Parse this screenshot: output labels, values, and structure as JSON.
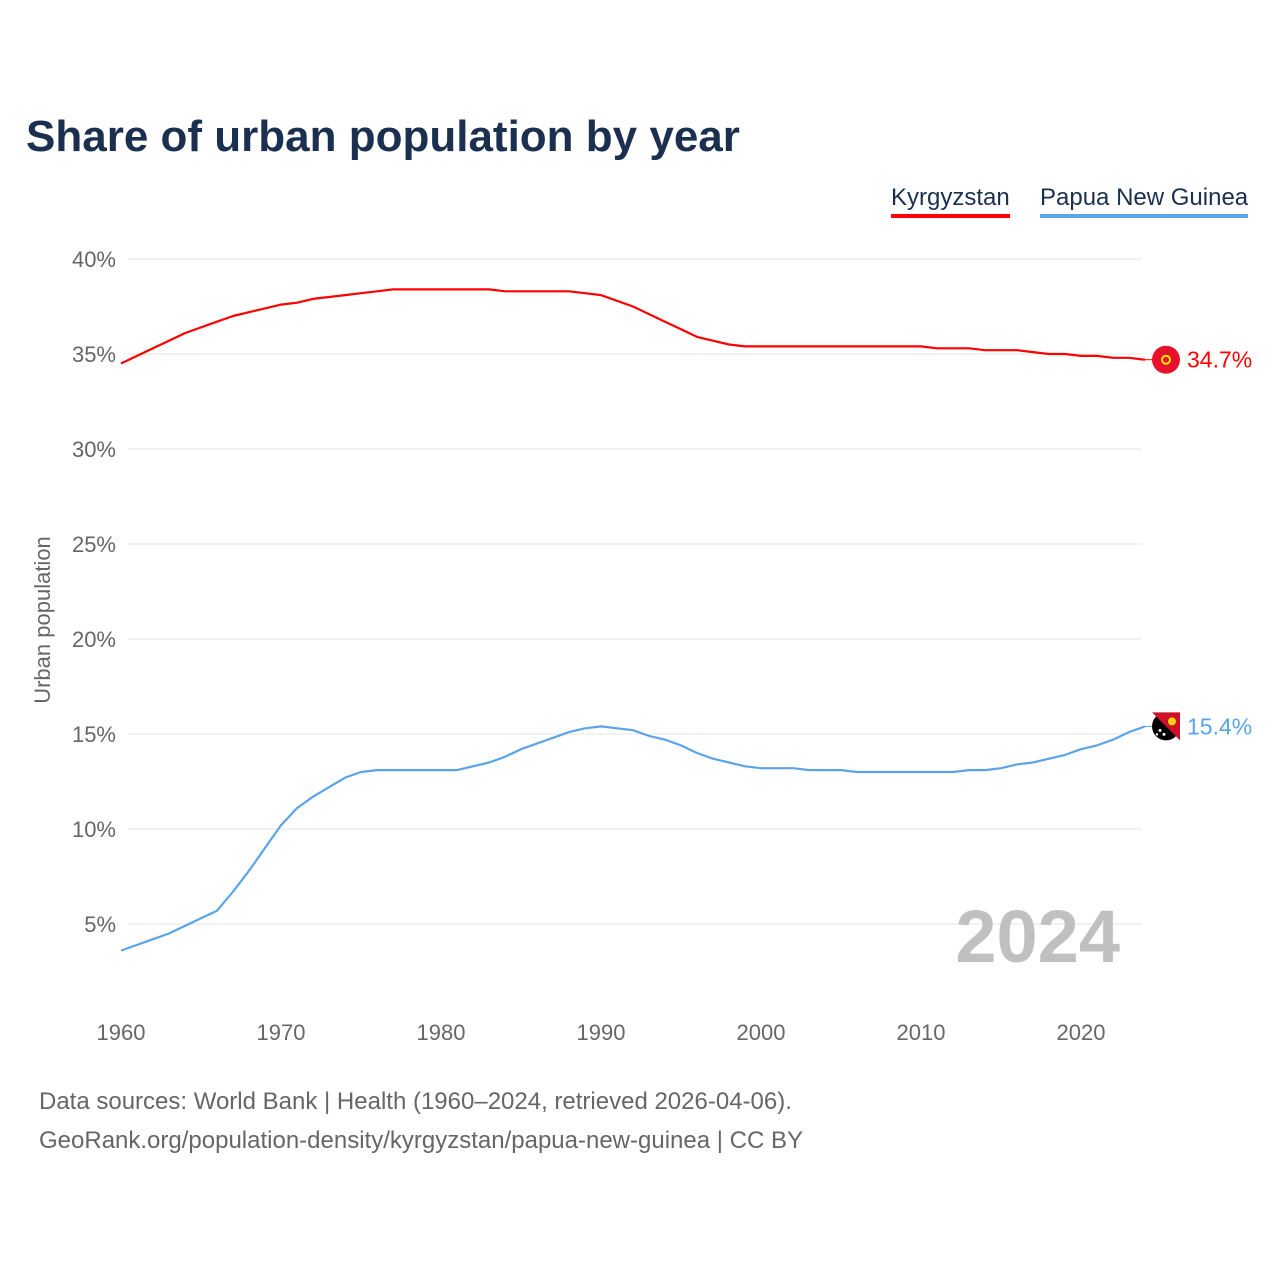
{
  "title": "Share of urban population by year",
  "legend": [
    {
      "name": "Kyrgyzstan",
      "color": "#ff0000"
    },
    {
      "name": "Papua New Guinea",
      "color": "#5ba4e8"
    }
  ],
  "watermark_year": "2024",
  "footer": {
    "line1": "Data sources: World Bank | Health (1960–2024, retrieved 2026-04-06).",
    "line2": "GeoRank.org/population-density/kyrgyzstan/papua-new-guinea | CC BY"
  },
  "chart_data": {
    "type": "line",
    "title": "Share of urban population by year",
    "xlabel": "",
    "ylabel": "Urban population",
    "xlim": [
      1960,
      2024
    ],
    "ylim": [
      0,
      40
    ],
    "x_ticks": [
      1960,
      1970,
      1980,
      1990,
      2000,
      2010,
      2020
    ],
    "y_ticks": [
      5,
      10,
      15,
      20,
      25,
      30,
      35,
      40
    ],
    "y_tick_labels": [
      "5%",
      "10%",
      "15%",
      "20%",
      "25%",
      "30%",
      "35%",
      "40%"
    ],
    "grid": true,
    "legend_position": "top-right",
    "x_start": 1960,
    "series": [
      {
        "name": "Kyrgyzstan",
        "color": "#ff0000",
        "end_label": "34.7%",
        "flag_icon": "kyrgyzstan-flag",
        "values": [
          34.5,
          34.9,
          35.3,
          35.7,
          36.1,
          36.4,
          36.7,
          37.0,
          37.2,
          37.4,
          37.6,
          37.7,
          37.9,
          38.0,
          38.1,
          38.2,
          38.3,
          38.4,
          38.4,
          38.4,
          38.4,
          38.4,
          38.4,
          38.4,
          38.3,
          38.3,
          38.3,
          38.3,
          38.3,
          38.2,
          38.1,
          37.8,
          37.5,
          37.1,
          36.7,
          36.3,
          35.9,
          35.7,
          35.5,
          35.4,
          35.4,
          35.4,
          35.4,
          35.4,
          35.4,
          35.4,
          35.4,
          35.4,
          35.4,
          35.4,
          35.4,
          35.3,
          35.3,
          35.3,
          35.2,
          35.2,
          35.2,
          35.1,
          35.0,
          35.0,
          34.9,
          34.9,
          34.8,
          34.8,
          34.7
        ]
      },
      {
        "name": "Papua New Guinea",
        "color": "#5ba4e8",
        "end_label": "15.4%",
        "flag_icon": "papua-new-guinea-flag",
        "values": [
          3.6,
          3.9,
          4.2,
          4.5,
          4.9,
          5.3,
          5.7,
          6.7,
          7.8,
          9.0,
          10.2,
          11.1,
          11.7,
          12.2,
          12.7,
          13.0,
          13.1,
          13.1,
          13.1,
          13.1,
          13.1,
          13.1,
          13.3,
          13.5,
          13.8,
          14.2,
          14.5,
          14.8,
          15.1,
          15.3,
          15.4,
          15.3,
          15.2,
          14.9,
          14.7,
          14.4,
          14.0,
          13.7,
          13.5,
          13.3,
          13.2,
          13.2,
          13.2,
          13.1,
          13.1,
          13.1,
          13.0,
          13.0,
          13.0,
          13.0,
          13.0,
          13.0,
          13.0,
          13.1,
          13.1,
          13.2,
          13.4,
          13.5,
          13.7,
          13.9,
          14.2,
          14.4,
          14.7,
          15.1,
          15.4
        ]
      }
    ]
  }
}
